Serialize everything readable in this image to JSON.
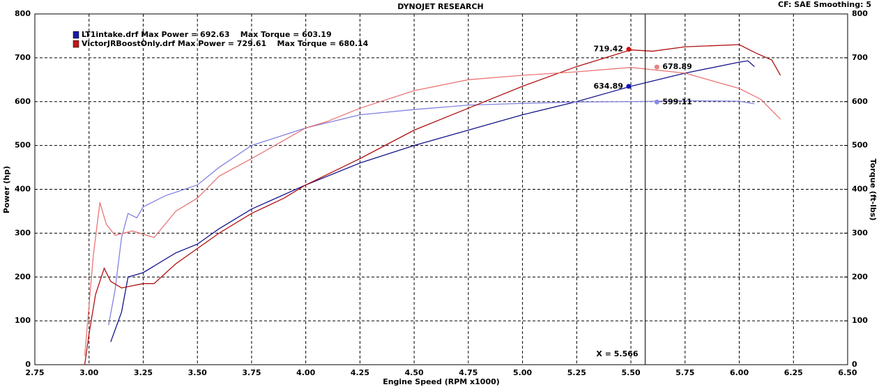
{
  "chart_data": {
    "type": "line",
    "title": "DYNOJET RESEARCH",
    "subtitle": "CF: SAE  Smoothing: 5",
    "x_label": "Engine Speed (RPM x1000)",
    "y_label": "Power (hp)",
    "y2_label": "Torque (ft-lbs)",
    "xlim": [
      2.75,
      6.5
    ],
    "xticks": [
      {
        "value": 2.75,
        "label": "2.75"
      },
      {
        "value": 3,
        "label": "3.00"
      },
      {
        "value": 3.25,
        "label": "3.25"
      },
      {
        "value": 3.5,
        "label": "3.50"
      },
      {
        "value": 3.75,
        "label": "3.75"
      },
      {
        "value": 4,
        "label": "4.00"
      },
      {
        "value": 4.25,
        "label": "4.25"
      },
      {
        "value": 4.5,
        "label": "4.50"
      },
      {
        "value": 4.75,
        "label": "4.75"
      },
      {
        "value": 5,
        "label": "5.00"
      },
      {
        "value": 5.25,
        "label": "5.25"
      },
      {
        "value": 5.5,
        "label": "5.50"
      },
      {
        "value": 5.75,
        "label": "5.75"
      },
      {
        "value": 6,
        "label": "6.00"
      },
      {
        "value": 6.25,
        "label": "6.25"
      },
      {
        "value": 6.5,
        "label": "6.50"
      }
    ],
    "ylim": [
      0,
      800
    ],
    "yticks": [
      0,
      100,
      200,
      300,
      400,
      500,
      600,
      700,
      800
    ],
    "y2lim": [
      0,
      800
    ],
    "y2ticks": [
      0,
      100,
      200,
      300,
      400,
      500,
      600,
      700,
      800
    ],
    "grid": true,
    "legend": [
      {
        "text": "LT1intake.drf Max Power = 692.63    Max Torque = 603.19",
        "color": "#1a1aa0"
      },
      {
        "text": "VictorJRBoostOnly.drf Max Power = 729.61    Max Torque = 680.14",
        "color": "#c01818"
      }
    ],
    "series": [
      {
        "color": "#14148a",
        "x": [
          3.1,
          3.15,
          3.18,
          3.25,
          3.3,
          3.4,
          3.5,
          3.6,
          3.75,
          4.0,
          4.25,
          4.5,
          4.75,
          5.0,
          5.25,
          5.5,
          5.75,
          6.0,
          6.04,
          6.07
        ],
        "values": [
          52,
          120,
          200,
          210,
          225,
          255,
          275,
          310,
          355,
          410,
          460,
          500,
          535,
          570,
          600,
          635,
          665,
          690,
          693,
          680
        ]
      },
      {
        "color": "#8282e0",
        "axis": "y2",
        "x": [
          3.09,
          3.12,
          3.15,
          3.18,
          3.22,
          3.25,
          3.35,
          3.5,
          3.6,
          3.75,
          4.0,
          4.25,
          4.5,
          4.75,
          5.0,
          5.25,
          5.5,
          5.75,
          6.0,
          6.07
        ],
        "values": [
          90,
          170,
          290,
          345,
          335,
          360,
          385,
          410,
          450,
          500,
          540,
          570,
          582,
          592,
          596,
          599,
          600,
          602,
          601,
          595
        ]
      },
      {
        "color": "#b01010",
        "x": [
          2.98,
          3.0,
          3.03,
          3.07,
          3.1,
          3.15,
          3.25,
          3.3,
          3.4,
          3.5,
          3.6,
          3.75,
          3.9,
          4.0,
          4.25,
          4.5,
          4.75,
          5.0,
          5.25,
          5.5,
          5.6,
          5.75,
          6.0,
          6.08,
          6.15,
          6.19
        ],
        "values": [
          0,
          70,
          160,
          220,
          190,
          175,
          185,
          185,
          230,
          265,
          300,
          345,
          380,
          410,
          470,
          535,
          585,
          635,
          680,
          718,
          715,
          725,
          730,
          710,
          695,
          660
        ]
      },
      {
        "color": "#ea7575",
        "axis": "y2",
        "x": [
          2.98,
          3.02,
          3.05,
          3.08,
          3.12,
          3.2,
          3.3,
          3.4,
          3.5,
          3.6,
          3.75,
          4.0,
          4.1,
          4.25,
          4.5,
          4.75,
          5.0,
          5.25,
          5.5,
          5.75,
          6.0,
          6.1,
          6.19
        ],
        "values": [
          20,
          250,
          370,
          320,
          295,
          305,
          290,
          350,
          380,
          430,
          470,
          540,
          555,
          585,
          625,
          650,
          660,
          668,
          678,
          665,
          630,
          605,
          560
        ]
      }
    ],
    "markers": [
      {
        "x": 5.49,
        "y": 719.42,
        "color": "#d01010"
      },
      {
        "x": 5.49,
        "y": 634.89,
        "color": "#1010c0"
      },
      {
        "x": 5.62,
        "y": 678.89,
        "color": "#e88080"
      },
      {
        "x": 5.62,
        "y": 599.11,
        "color": "#8888e8"
      }
    ],
    "cursor": {
      "x": 5.566,
      "label": "X = 5.566"
    }
  }
}
